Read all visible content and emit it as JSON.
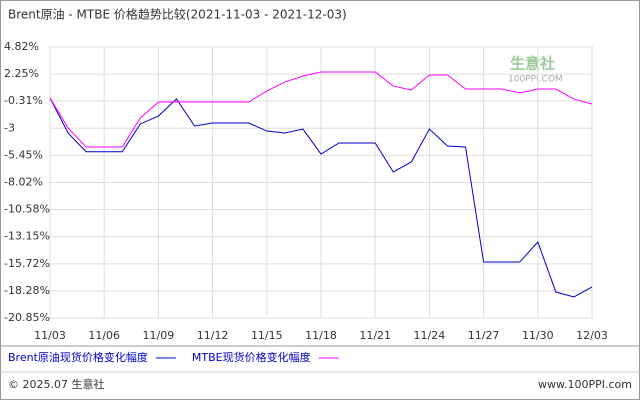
{
  "chart_data": {
    "type": "line",
    "title": "Brent原油 - MTBE 价格趋势比较(2021-11-03 - 2021-12-03)",
    "xticks": [
      "11/03",
      "11/06",
      "11/09",
      "11/12",
      "11/15",
      "11/18",
      "11/21",
      "11/24",
      "11/27",
      "11/30",
      "12/03"
    ],
    "ylim": [
      -20.85,
      4.82
    ],
    "yticks": [
      {
        "value": 4.82,
        "label": "4.82%"
      },
      {
        "value": 2.25,
        "label": "2.25%"
      },
      {
        "value": -0.31,
        "label": "-0.31%"
      },
      {
        "value": -2.88,
        "label": "-3"
      },
      {
        "value": -5.45,
        "label": "-5.45%"
      },
      {
        "value": -8.02,
        "label": "-8.02%"
      },
      {
        "value": -10.58,
        "label": "-10.58%"
      },
      {
        "value": -13.15,
        "label": "-13.15%"
      },
      {
        "value": -15.72,
        "label": "-15.72%"
      },
      {
        "value": -18.28,
        "label": "-18.28%"
      },
      {
        "value": -20.85,
        "label": "-20.85%"
      }
    ],
    "grid": true,
    "series": [
      {
        "name": "Brent原油现货价格变化幅度",
        "color": "#0000cc",
        "x": [
          "11/03",
          "11/04",
          "11/05",
          "11/07",
          "11/08",
          "11/09",
          "11/10",
          "11/11",
          "11/12",
          "11/14",
          "11/15",
          "11/16",
          "11/17",
          "11/18",
          "11/19",
          "11/21",
          "11/22",
          "11/23",
          "11/24",
          "11/25",
          "11/26",
          "11/27",
          "11/29",
          "11/30",
          "12/01",
          "12/02",
          "12/03"
        ],
        "values": [
          0,
          -3.33,
          -5.1,
          -5.1,
          -2.47,
          -1.72,
          -0.1,
          -2.66,
          -2.38,
          -2.38,
          -3.14,
          -3.33,
          -2.95,
          -5.32,
          -4.27,
          -4.27,
          -7.02,
          -6.07,
          -2.95,
          -4.56,
          -4.65,
          -15.55,
          -15.55,
          -13.65,
          -18.39,
          -18.86,
          -17.91
        ]
      },
      {
        "name": "MTBE现货价格变化幅度",
        "color": "#ff00ff",
        "x": [
          "11/03",
          "11/04",
          "11/05",
          "11/07",
          "11/08",
          "11/09",
          "11/11",
          "11/14",
          "11/15",
          "11/16",
          "11/17",
          "11/18",
          "11/21",
          "11/22",
          "11/23",
          "11/24",
          "11/25",
          "11/26",
          "11/28",
          "11/29",
          "11/30",
          "12/01",
          "12/02",
          "12/03"
        ],
        "values": [
          0,
          -2.85,
          -4.65,
          -4.65,
          -1.9,
          -0.39,
          -0.39,
          -0.39,
          0.65,
          1.5,
          2.07,
          2.45,
          2.45,
          1.12,
          0.75,
          2.17,
          2.17,
          0.84,
          0.84,
          0.46,
          0.84,
          0.84,
          -0.11,
          -0.58
        ]
      }
    ],
    "watermark": "生意社",
    "watermark_sub": "100PPI.COM",
    "footer_left": "© 2025.07 生意社",
    "footer_right": "www.100PPI.com"
  }
}
